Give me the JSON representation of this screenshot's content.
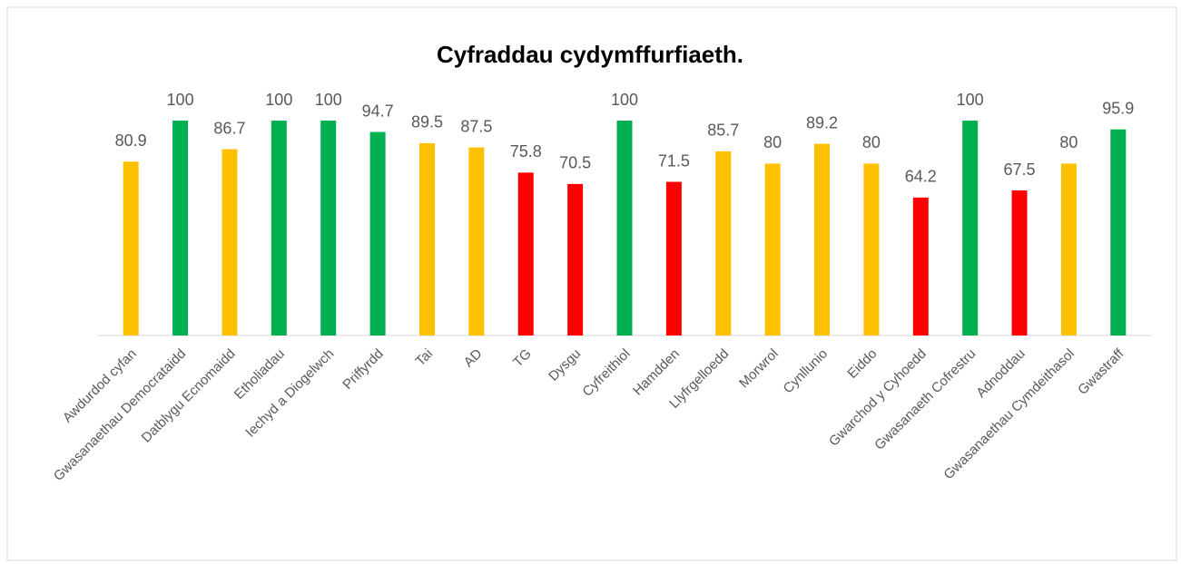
{
  "chart_data": {
    "type": "bar",
    "title": "Cyfraddau cydymffurfiaeth.",
    "categories": [
      "Awdurdod cyfan",
      "Gwasanaethau Democrataidd",
      "Datblygu Ecnomaidd",
      "Etholiadau",
      "Iechyd a Diogelwch",
      "Priffyrdd",
      "Tai",
      "AD",
      "TG",
      "Dysgu",
      "Cyfreithiol",
      "Hamdden",
      "Llyfrgelloedd",
      "Morwrol",
      "Cynllunio",
      "Eiddo",
      "Gwarchod y Cyhoedd",
      "Gwasanaeth Cofrestru",
      "Adnoddau",
      "Gwasanaethau Cymdeithasol",
      "Gwastraff"
    ],
    "values": [
      80.9,
      100,
      86.7,
      100,
      100,
      94.7,
      89.5,
      87.5,
      75.8,
      70.5,
      100,
      71.5,
      85.7,
      80,
      89.2,
      80,
      64.2,
      100,
      67.5,
      80,
      95.9
    ],
    "colors": [
      "#FFC000",
      "#00B050",
      "#FFC000",
      "#00B050",
      "#00B050",
      "#00B050",
      "#FFC000",
      "#FFC000",
      "#FF0000",
      "#FF0000",
      "#00B050",
      "#FF0000",
      "#FFC000",
      "#FFC000",
      "#FFC000",
      "#FFC000",
      "#FF0000",
      "#00B050",
      "#FF0000",
      "#FFC000",
      "#00B050"
    ],
    "ylim": [
      0,
      100
    ]
  }
}
